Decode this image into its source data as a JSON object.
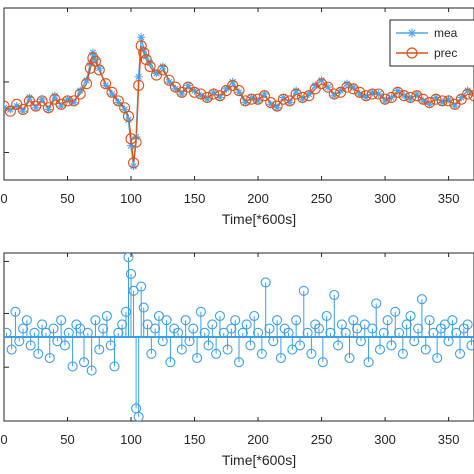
{
  "colors": {
    "measured": "#4da6e8",
    "predicted": "#d9531e",
    "residual": "#3c9ee6",
    "axis": "#262626"
  },
  "chart_data": [
    {
      "type": "line",
      "xlabel": "Time[*600s]",
      "ylabel": "",
      "xlim": [
        0,
        370
      ],
      "ylim": [
        0,
        1
      ],
      "xticks": [
        "0",
        "50",
        "100",
        "150",
        "200",
        "250",
        "300",
        "350"
      ],
      "legend": {
        "placement": "top-right",
        "entries": [
          "mea",
          "prec"
        ]
      },
      "series": [
        {
          "name": "mea",
          "marker": "asterisk-icon",
          "x": [
            0,
            5,
            10,
            15,
            20,
            25,
            30,
            35,
            40,
            45,
            50,
            55,
            60,
            65,
            68,
            70,
            72,
            75,
            80,
            85,
            90,
            95,
            98,
            100,
            102,
            104,
            106,
            108,
            110,
            112,
            115,
            120,
            125,
            130,
            135,
            140,
            145,
            150,
            155,
            160,
            165,
            170,
            175,
            180,
            185,
            190,
            195,
            200,
            205,
            210,
            215,
            220,
            225,
            230,
            235,
            240,
            245,
            250,
            255,
            260,
            265,
            270,
            275,
            280,
            285,
            290,
            295,
            300,
            305,
            310,
            315,
            320,
            325,
            330,
            335,
            340,
            345,
            350,
            355,
            360,
            365,
            370
          ],
          "y": [
            0.42,
            0.41,
            0.43,
            0.4,
            0.48,
            0.42,
            0.47,
            0.41,
            0.49,
            0.43,
            0.47,
            0.45,
            0.52,
            0.58,
            0.68,
            0.74,
            0.7,
            0.65,
            0.55,
            0.5,
            0.45,
            0.41,
            0.35,
            0.2,
            0.08,
            0.25,
            0.6,
            0.83,
            0.76,
            0.72,
            0.68,
            0.62,
            0.66,
            0.57,
            0.53,
            0.5,
            0.55,
            0.52,
            0.49,
            0.47,
            0.51,
            0.48,
            0.53,
            0.57,
            0.51,
            0.45,
            0.48,
            0.46,
            0.5,
            0.44,
            0.42,
            0.48,
            0.45,
            0.52,
            0.47,
            0.5,
            0.55,
            0.58,
            0.54,
            0.49,
            0.52,
            0.56,
            0.54,
            0.5,
            0.48,
            0.51,
            0.5,
            0.46,
            0.48,
            0.52,
            0.49,
            0.47,
            0.5,
            0.46,
            0.44,
            0.48,
            0.45,
            0.47,
            0.43,
            0.48,
            0.52,
            0.5
          ]
        },
        {
          "name": "prec",
          "marker": "circle-icon",
          "x": [
            0,
            5,
            10,
            15,
            20,
            25,
            30,
            35,
            40,
            45,
            50,
            55,
            60,
            65,
            68,
            70,
            72,
            75,
            80,
            85,
            90,
            95,
            98,
            100,
            102,
            104,
            106,
            108,
            110,
            112,
            115,
            120,
            125,
            130,
            135,
            140,
            145,
            150,
            155,
            160,
            165,
            170,
            175,
            180,
            185,
            190,
            195,
            200,
            205,
            210,
            215,
            220,
            225,
            230,
            235,
            240,
            245,
            250,
            255,
            260,
            265,
            270,
            275,
            280,
            285,
            290,
            295,
            300,
            305,
            310,
            315,
            320,
            325,
            330,
            335,
            340,
            345,
            350,
            355,
            360,
            365,
            370
          ],
          "y": [
            0.43,
            0.4,
            0.44,
            0.41,
            0.46,
            0.43,
            0.46,
            0.42,
            0.47,
            0.44,
            0.46,
            0.46,
            0.5,
            0.56,
            0.65,
            0.71,
            0.69,
            0.64,
            0.56,
            0.51,
            0.46,
            0.42,
            0.37,
            0.24,
            0.1,
            0.22,
            0.55,
            0.78,
            0.74,
            0.7,
            0.66,
            0.61,
            0.64,
            0.58,
            0.54,
            0.51,
            0.54,
            0.51,
            0.5,
            0.48,
            0.5,
            0.49,
            0.52,
            0.55,
            0.52,
            0.46,
            0.47,
            0.47,
            0.49,
            0.45,
            0.43,
            0.47,
            0.46,
            0.5,
            0.48,
            0.49,
            0.53,
            0.56,
            0.54,
            0.5,
            0.51,
            0.54,
            0.53,
            0.51,
            0.49,
            0.5,
            0.5,
            0.47,
            0.48,
            0.51,
            0.49,
            0.48,
            0.49,
            0.47,
            0.45,
            0.47,
            0.46,
            0.46,
            0.44,
            0.47,
            0.5,
            0.49
          ]
        }
      ]
    },
    {
      "type": "scatter",
      "subtype": "stem",
      "xlabel": "Time[*600s]",
      "ylabel": "",
      "xlim": [
        0,
        370
      ],
      "ylim": [
        -1,
        1
      ],
      "baseline": 0,
      "xticks": [
        "0",
        "50",
        "100",
        "150",
        "200",
        "250",
        "300",
        "350"
      ],
      "series": [
        {
          "name": "",
          "marker": "circle-icon",
          "x": [
            2,
            6,
            9,
            12,
            15,
            18,
            21,
            24,
            27,
            30,
            33,
            36,
            39,
            42,
            45,
            48,
            51,
            54,
            57,
            60,
            63,
            66,
            69,
            72,
            75,
            78,
            81,
            84,
            87,
            90,
            93,
            96,
            98,
            100,
            102,
            104,
            106,
            108,
            110,
            113,
            116,
            119,
            122,
            125,
            128,
            131,
            134,
            137,
            140,
            143,
            146,
            149,
            152,
            155,
            158,
            161,
            164,
            167,
            170,
            173,
            176,
            179,
            182,
            185,
            188,
            191,
            194,
            197,
            200,
            203,
            206,
            209,
            212,
            215,
            218,
            221,
            224,
            227,
            230,
            233,
            236,
            239,
            242,
            245,
            248,
            251,
            254,
            257,
            260,
            263,
            266,
            269,
            272,
            275,
            278,
            281,
            284,
            287,
            290,
            293,
            296,
            299,
            302,
            305,
            308,
            311,
            314,
            317,
            320,
            323,
            326,
            329,
            332,
            335,
            338,
            341,
            344,
            347,
            350,
            353,
            356,
            359,
            362,
            365,
            368
          ],
          "y": [
            0.05,
            -0.15,
            0.3,
            -0.05,
            0.1,
            0.2,
            -0.1,
            0.05,
            -0.2,
            0.15,
            0.05,
            -0.25,
            0.1,
            -0.05,
            0.2,
            -0.1,
            0.05,
            -0.35,
            0.15,
            0.1,
            -0.3,
            0.05,
            -0.4,
            0.2,
            -0.15,
            0.1,
            0.25,
            -0.1,
            -0.35,
            0.05,
            0.15,
            0.3,
            0.95,
            0.75,
            0.55,
            -0.85,
            -0.95,
            0.6,
            0.35,
            0.15,
            -0.2,
            0.1,
            0.25,
            -0.05,
            0.2,
            -0.3,
            0.1,
            0.05,
            -0.15,
            0.2,
            -0.05,
            0.1,
            -0.25,
            0.3,
            0.05,
            -0.1,
            0.15,
            -0.2,
            0.25,
            0.05,
            -0.15,
            0.1,
            0.2,
            -0.3,
            0.05,
            0.15,
            -0.1,
            0.25,
            0.05,
            -0.2,
            0.65,
            0.1,
            -0.05,
            0.2,
            -0.25,
            0.1,
            0.05,
            -0.15,
            0.2,
            -0.1,
            0.55,
            0.05,
            -0.2,
            0.15,
            0.1,
            -0.3,
            0.25,
            0.05,
            0.5,
            -0.1,
            0.15,
            0.05,
            -0.25,
            0.2,
            0.1,
            -0.05,
            0.15,
            -0.3,
            0.1,
            0.4,
            -0.15,
            0.05,
            0.2,
            -0.1,
            0.3,
            0.05,
            -0.2,
            0.15,
            0.25,
            -0.05,
            0.1,
            0.45,
            -0.15,
            0.2,
            0.05,
            -0.25,
            0.1,
            0.15,
            -0.05,
            0.2,
            0.05,
            -0.2,
            0.1,
            0.15,
            -0.1
          ]
        }
      ]
    }
  ]
}
